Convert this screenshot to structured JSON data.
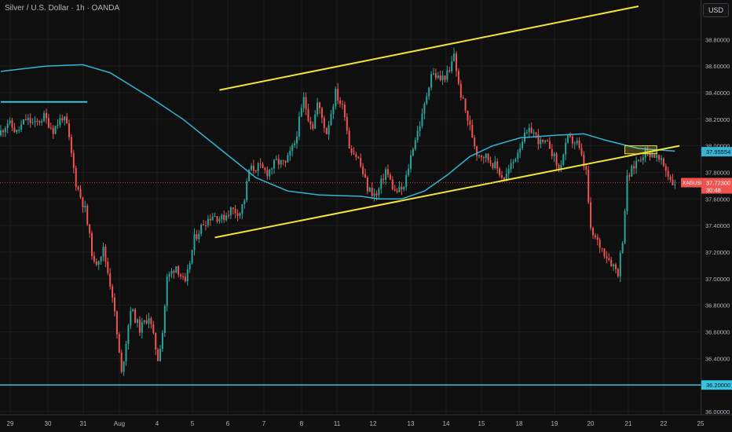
{
  "header": {
    "title": "Silver / U.S. Dollar · 1h · OANDA",
    "currency": "USD"
  },
  "colors": {
    "background": "#0f0f0f",
    "grid": "#1c1c1c",
    "up_candle": "#26a69a",
    "down_candle": "#ef5350",
    "moving_average": "#36b4d6",
    "channel": "#f2e33a",
    "support_line": "#36c4e0",
    "current_price": "#ef5350"
  },
  "chart_data": {
    "type": "candlestick",
    "title": "Silver / U.S. Dollar · 1h · OANDA",
    "ylim": [
      36.0,
      39.05
    ],
    "grid": true,
    "x_ticks": [
      "29",
      "30",
      "31",
      "Aug",
      "4",
      "5",
      "6",
      "7",
      "8",
      "11",
      "12",
      "13",
      "14",
      "15",
      "18",
      "19",
      "20",
      "21",
      "22",
      "25"
    ],
    "y_ticks": [
      "38.80000",
      "38.60000",
      "38.40000",
      "38.20000",
      "38.00000",
      "37.80000",
      "37.60000",
      "37.40000",
      "37.20000",
      "37.00000",
      "36.80000",
      "36.60000",
      "36.40000",
      "36.00000"
    ],
    "price_path": [
      [
        0,
        38.08
      ],
      [
        4,
        38.18
      ],
      [
        8,
        38.1
      ],
      [
        12,
        38.2
      ],
      [
        16,
        38.16
      ],
      [
        20,
        38.22
      ],
      [
        24,
        38.12
      ],
      [
        28,
        38.22
      ],
      [
        30,
        38.15
      ],
      [
        34,
        37.72
      ],
      [
        38,
        37.52
      ],
      [
        42,
        37.1
      ],
      [
        46,
        37.22
      ],
      [
        50,
        36.88
      ],
      [
        54,
        36.28
      ],
      [
        58,
        36.78
      ],
      [
        62,
        36.62
      ],
      [
        66,
        36.72
      ],
      [
        70,
        36.4
      ],
      [
        72,
        36.6
      ],
      [
        74,
        37.0
      ],
      [
        78,
        37.1
      ],
      [
        82,
        36.95
      ],
      [
        86,
        37.3
      ],
      [
        90,
        37.42
      ],
      [
        94,
        37.48
      ],
      [
        98,
        37.45
      ],
      [
        102,
        37.52
      ],
      [
        106,
        37.5
      ],
      [
        108,
        37.6
      ],
      [
        110,
        37.82
      ],
      [
        114,
        37.84
      ],
      [
        118,
        37.8
      ],
      [
        122,
        37.88
      ],
      [
        126,
        37.86
      ],
      [
        130,
        38.02
      ],
      [
        134,
        38.35
      ],
      [
        136,
        38.22
      ],
      [
        138,
        38.15
      ],
      [
        140,
        38.32
      ],
      [
        144,
        38.1
      ],
      [
        148,
        38.4
      ],
      [
        152,
        38.25
      ],
      [
        154,
        38.0
      ],
      [
        158,
        37.9
      ],
      [
        162,
        37.68
      ],
      [
        166,
        37.62
      ],
      [
        170,
        37.82
      ],
      [
        174,
        37.65
      ],
      [
        178,
        37.68
      ],
      [
        182,
        38.0
      ],
      [
        186,
        38.22
      ],
      [
        190,
        38.55
      ],
      [
        194,
        38.5
      ],
      [
        198,
        38.55
      ],
      [
        200,
        38.7
      ],
      [
        202,
        38.45
      ],
      [
        206,
        38.2
      ],
      [
        210,
        37.95
      ],
      [
        214,
        37.92
      ],
      [
        218,
        37.85
      ],
      [
        222,
        37.75
      ],
      [
        226,
        37.88
      ],
      [
        230,
        38.05
      ],
      [
        234,
        38.12
      ],
      [
        238,
        38.02
      ],
      [
        242,
        38.0
      ],
      [
        246,
        37.82
      ],
      [
        250,
        38.05
      ],
      [
        254,
        38.02
      ],
      [
        258,
        37.8
      ],
      [
        260,
        37.35
      ],
      [
        264,
        37.25
      ],
      [
        268,
        37.15
      ],
      [
        272,
        37.05
      ],
      [
        274,
        37.3
      ],
      [
        276,
        37.75
      ],
      [
        280,
        37.88
      ],
      [
        284,
        37.96
      ],
      [
        288,
        37.93
      ],
      [
        292,
        37.85
      ],
      [
        296,
        37.72
      ]
    ],
    "indicators": [
      {
        "kind": "moving_average",
        "points": [
          [
            0,
            38.56
          ],
          [
            20,
            38.6
          ],
          [
            36,
            38.61
          ],
          [
            48,
            38.55
          ],
          [
            66,
            38.36
          ],
          [
            80,
            38.2
          ],
          [
            96,
            37.98
          ],
          [
            112,
            37.76
          ],
          [
            126,
            37.66
          ],
          [
            140,
            37.63
          ],
          [
            158,
            37.62
          ],
          [
            166,
            37.6
          ],
          [
            176,
            37.6
          ],
          [
            186,
            37.66
          ],
          [
            196,
            37.78
          ],
          [
            206,
            37.92
          ],
          [
            216,
            38.0
          ],
          [
            228,
            38.06
          ],
          [
            244,
            38.08
          ],
          [
            256,
            38.09
          ],
          [
            266,
            38.04
          ],
          [
            280,
            37.98
          ],
          [
            296,
            37.96
          ]
        ]
      },
      {
        "kind": "channel_upper",
        "points": [
          [
            96,
            38.42
          ],
          [
            280,
            39.05
          ]
        ]
      },
      {
        "kind": "channel_lower",
        "points": [
          [
            94,
            37.31
          ],
          [
            298,
            38.0
          ]
        ]
      },
      {
        "kind": "horizontal_level",
        "points": [
          [
            0,
            38.33
          ],
          [
            38,
            38.33
          ]
        ]
      },
      {
        "kind": "support_level",
        "value": 36.2
      },
      {
        "kind": "highlight_box",
        "points": [
          [
            274,
            38.0
          ],
          [
            288,
            37.94
          ]
        ]
      }
    ],
    "price_labels": [
      {
        "value": 37.95554,
        "text": "37.95554",
        "kind": "moving_average"
      },
      {
        "value": 37.723,
        "text": "37.72300",
        "symbol": "XAGUSD",
        "timer": "30:48",
        "kind": "current"
      },
      {
        "value": 36.2,
        "text": "36.20000",
        "kind": "support"
      }
    ]
  }
}
